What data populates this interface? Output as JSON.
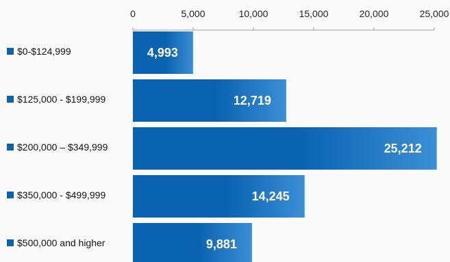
{
  "chart_data": {
    "type": "bar",
    "orientation": "horizontal",
    "categories": [
      "$0-$124,999",
      "$125,000 - $199,999",
      "$200,000 – $349,999",
      "$350,000 - $499,999",
      "$500,000 and higher"
    ],
    "values": [
      4993,
      12719,
      25212,
      14245,
      9881
    ],
    "value_labels": [
      "4,993",
      "12,719",
      "25,212",
      "14,245",
      "9,881"
    ],
    "xlim": [
      0,
      25000
    ],
    "x_ticks": [
      0,
      5000,
      10000,
      15000,
      20000,
      25000
    ],
    "x_tick_labels": [
      "0",
      "5,000",
      "10,000",
      "15,000",
      "20,000",
      "25,000"
    ],
    "axis_position": "top",
    "grid": false,
    "legend": "none",
    "title": "",
    "xlabel": "",
    "ylabel": "",
    "colors": {
      "bar_dark": "#0a63b0",
      "bar_light": "#3a8fd6",
      "marker": "#0a63b0",
      "axis": "#9e9e9e",
      "background": "#fafafa"
    }
  }
}
